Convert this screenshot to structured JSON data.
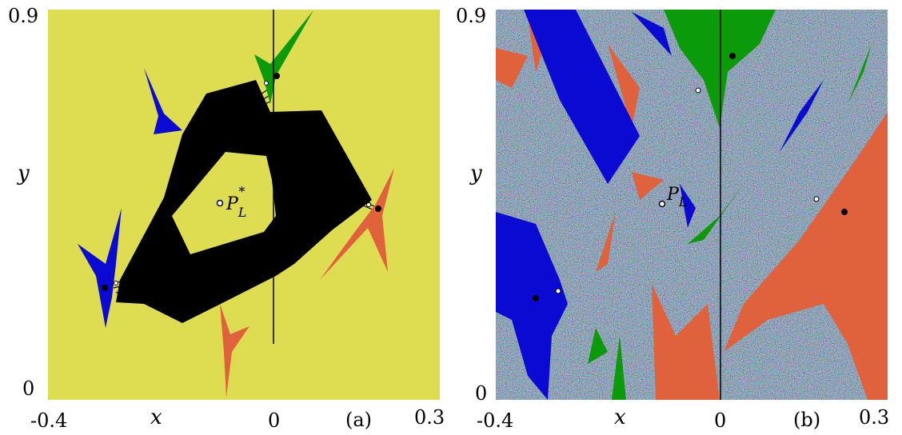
{
  "colors": {
    "background_a": "#dedc50",
    "black_region": "#000000",
    "blue": "#0a0ad2",
    "green": "#0a9a0a",
    "red": "#e0623c",
    "noise_base": "#5a8a72"
  },
  "panel_a": {
    "label": "(a)",
    "x_tick_left": "-0.4",
    "x_tick_mid": "0",
    "x_tick_right": "0.3",
    "y_tick_top": "0.9",
    "y_tick_bottom": "0",
    "xlabel": "x",
    "ylabel": "y",
    "point_label": "P",
    "point_sub": "L",
    "point_sup": "*"
  },
  "panel_b": {
    "label": "(b)",
    "x_tick_left": "-0.4",
    "x_tick_mid": "0",
    "x_tick_right": "0.3",
    "y_tick_top": "0.9",
    "y_tick_bottom": "0",
    "xlabel": "x",
    "ylabel": "y",
    "point_label": "P",
    "point_sub": "L"
  }
}
